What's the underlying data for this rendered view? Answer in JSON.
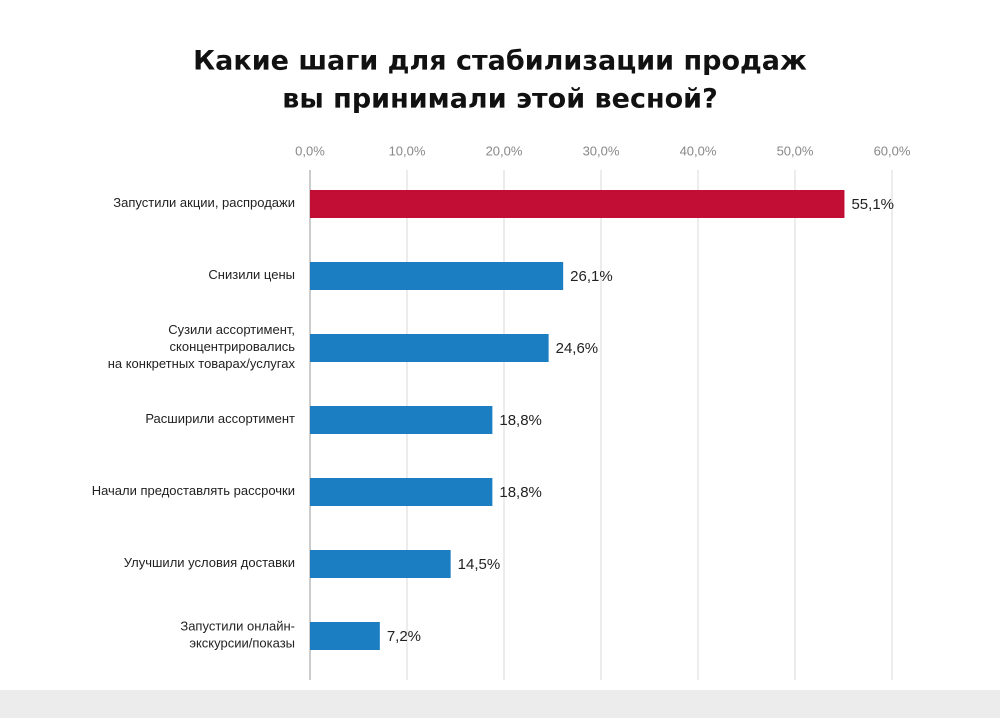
{
  "chart_data": {
    "type": "bar",
    "orientation": "horizontal",
    "title": [
      "Какие шаги для стабилизации продаж",
      "вы принимали этой весной?"
    ],
    "categories": [
      [
        "Запустили акции, распродажи"
      ],
      [
        "Снизили цены"
      ],
      [
        "Сузили ассортимент,",
        "сконцентрировались",
        "на конкретных товарах/услугах"
      ],
      [
        "Расширили ассортимент"
      ],
      [
        "Начали предоставлять рассрочки"
      ],
      [
        "Улучшили условия доставки"
      ],
      [
        "Запустили онлайн-",
        "экскурсии/показы"
      ]
    ],
    "values": [
      55.1,
      26.1,
      24.6,
      18.8,
      18.8,
      14.5,
      7.2
    ],
    "value_labels": [
      "55,1%",
      "26,1%",
      "24,6%",
      "18,8%",
      "18,8%",
      "14,5%",
      "7,2%"
    ],
    "colors": [
      "#c20e35",
      "#1b7ec2",
      "#1b7ec2",
      "#1b7ec2",
      "#1b7ec2",
      "#1b7ec2",
      "#1b7ec2"
    ],
    "xlim": [
      0,
      60
    ],
    "xticks": [
      {
        "value": 0,
        "label": "0,0%"
      },
      {
        "value": 10,
        "label": "10,0%"
      },
      {
        "value": 20,
        "label": "20,0%"
      },
      {
        "value": 30,
        "label": "30,0%"
      },
      {
        "value": 40,
        "label": "40,0%"
      },
      {
        "value": 50,
        "label": "50,0%"
      },
      {
        "value": 60,
        "label": "60,0%"
      }
    ],
    "grid": true
  }
}
